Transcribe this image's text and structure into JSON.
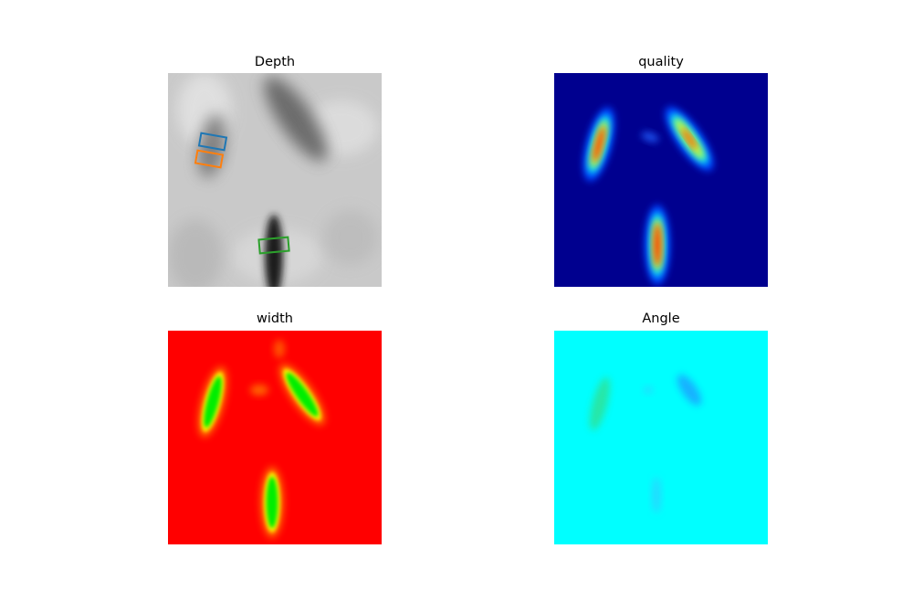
{
  "panels": [
    {
      "title": "Depth"
    },
    {
      "title": "quality"
    },
    {
      "title": "width"
    },
    {
      "title": "Angle"
    }
  ]
}
